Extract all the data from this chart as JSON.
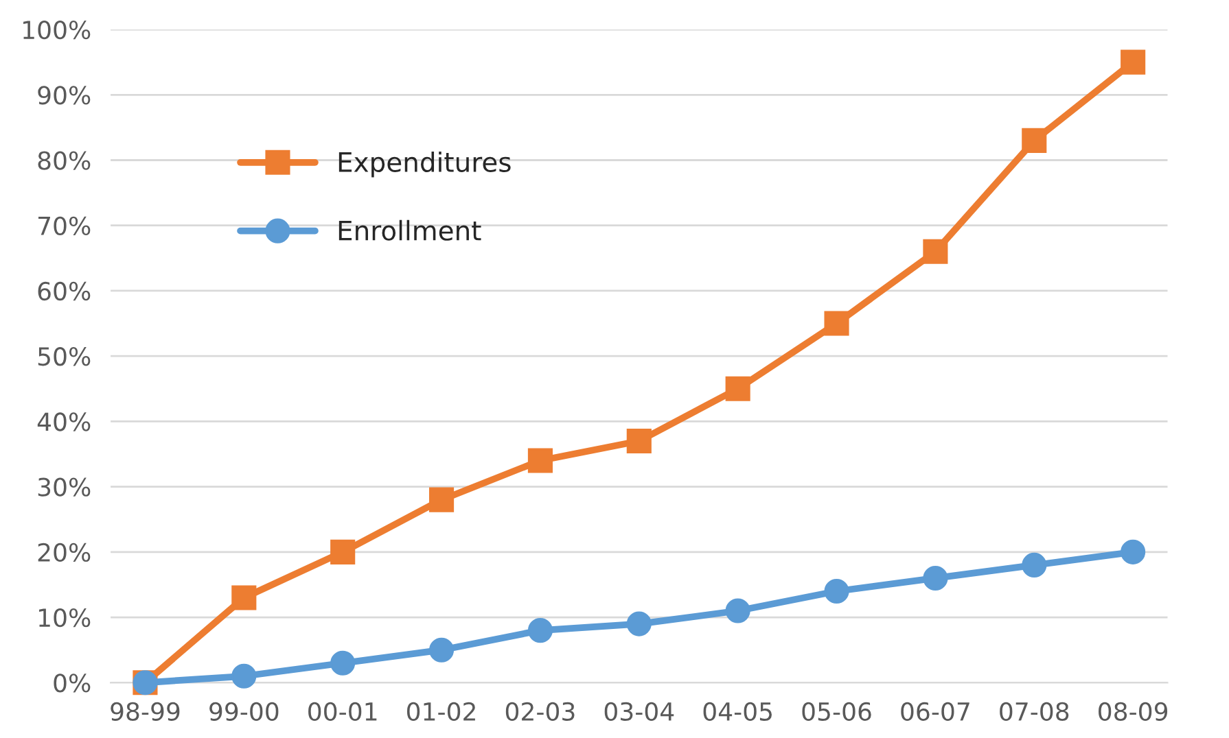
{
  "chart_data": {
    "type": "line",
    "categories": [
      "98-99",
      "99-00",
      "00-01",
      "01-02",
      "02-03",
      "03-04",
      "04-05",
      "05-06",
      "06-07",
      "07-08",
      "08-09"
    ],
    "series": [
      {
        "name": "Expenditures",
        "color": "#ed7d31",
        "marker": "square",
        "values": [
          0,
          13,
          20,
          28,
          34,
          37,
          45,
          55,
          66,
          83,
          95
        ]
      },
      {
        "name": "Enrollment",
        "color": "#5b9bd5",
        "marker": "circle",
        "values": [
          0,
          1,
          3,
          5,
          8,
          9,
          11,
          14,
          16,
          18,
          20
        ]
      }
    ],
    "ylim": [
      0,
      100
    ],
    "yticks": [
      {
        "value": 0,
        "label": "0%"
      },
      {
        "value": 10,
        "label": "10%"
      },
      {
        "value": 20,
        "label": "20%"
      },
      {
        "value": 30,
        "label": "30%"
      },
      {
        "value": 40,
        "label": "40%"
      },
      {
        "value": 50,
        "label": "50%"
      },
      {
        "value": 60,
        "label": "60%"
      },
      {
        "value": 70,
        "label": "70%"
      },
      {
        "value": 80,
        "label": "80%"
      },
      {
        "value": 90,
        "label": "90%"
      },
      {
        "value": 100,
        "label": "100%"
      }
    ],
    "grid": "y",
    "legend": "upper left",
    "line_style": "solid"
  }
}
